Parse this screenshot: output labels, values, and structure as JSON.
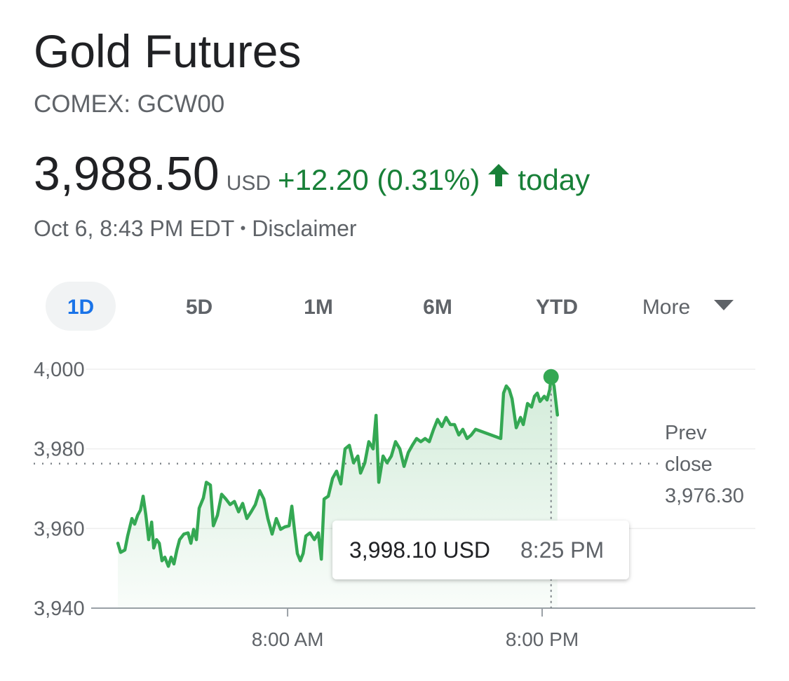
{
  "header": {
    "title": "Gold Futures",
    "symbol": "COMEX: GCW00",
    "price": "3,988.50",
    "currency": "USD",
    "change": "+12.20 (0.31%)",
    "period": "today",
    "timestamp": "Oct 6, 8:43 PM EDT",
    "separator": "•",
    "disclaimer": "Disclaimer"
  },
  "tabs": {
    "items": [
      "1D",
      "5D",
      "1M",
      "6M",
      "YTD",
      "More"
    ],
    "selected": "1D"
  },
  "chart_data": {
    "type": "line",
    "x": [
      0.0,
      0.13,
      0.33,
      0.46,
      0.66,
      0.79,
      0.93,
      1.06,
      1.19,
      1.32,
      1.45,
      1.59,
      1.69,
      1.82,
      1.95,
      2.08,
      2.21,
      2.38,
      2.51,
      2.64,
      2.78,
      2.91,
      3.11,
      3.31,
      3.44,
      3.57,
      3.7,
      3.83,
      4.03,
      4.17,
      4.36,
      4.5,
      4.69,
      4.89,
      5.09,
      5.29,
      5.49,
      5.69,
      5.88,
      6.08,
      6.28,
      6.48,
      6.68,
      6.88,
      7.07,
      7.27,
      7.47,
      7.67,
      7.87,
      8.07,
      8.2,
      8.33,
      8.46,
      8.6,
      8.73,
      8.86,
      9.06,
      9.26,
      9.45,
      9.59,
      9.72,
      9.92,
      10.12,
      10.31,
      10.51,
      10.71,
      10.91,
      11.11,
      11.31,
      11.44,
      11.64,
      11.83,
      12.03,
      12.17,
      12.3,
      12.5,
      12.69,
      12.89,
      13.09,
      13.29,
      13.49,
      13.69,
      13.88,
      14.08,
      14.28,
      14.48,
      14.68,
      14.88,
      15.07,
      15.27,
      15.47,
      15.67,
      15.87,
      16.07,
      16.26,
      16.46,
      16.66,
      16.86,
      18.05,
      18.18,
      18.31,
      18.45,
      18.58,
      18.78,
      18.98,
      19.11,
      19.31,
      19.5,
      19.64,
      19.77,
      19.9,
      20.1,
      20.23,
      20.36,
      20.42,
      20.56,
      20.72
    ],
    "series": [
      {
        "color": "#34a853",
        "values": [
          3956.3,
          3954.0,
          3954.6,
          3958.1,
          3962.5,
          3961.1,
          3963.3,
          3964.6,
          3968.1,
          3963.3,
          3957.2,
          3961.6,
          3955.1,
          3957.2,
          3956.3,
          3951.9,
          3952.8,
          3950.5,
          3952.8,
          3951.1,
          3954.6,
          3957.2,
          3958.6,
          3958.9,
          3956.3,
          3959.8,
          3957.2,
          3965.1,
          3967.7,
          3971.6,
          3970.9,
          3960.7,
          3963.3,
          3968.6,
          3967.4,
          3966.0,
          3966.8,
          3964.2,
          3966.3,
          3962.5,
          3964.2,
          3966.0,
          3969.5,
          3967.4,
          3962.5,
          3958.6,
          3962.5,
          3959.8,
          3960.4,
          3960.7,
          3965.6,
          3959.3,
          3953.7,
          3951.9,
          3953.7,
          3958.1,
          3958.9,
          3957.2,
          3958.9,
          3952.3,
          3967.4,
          3968.1,
          3972.6,
          3974.4,
          3971.2,
          3980.0,
          3980.9,
          3976.5,
          3978.2,
          3973.9,
          3976.5,
          3981.8,
          3980.0,
          3988.4,
          3971.6,
          3978.2,
          3976.5,
          3978.2,
          3981.8,
          3980.0,
          3975.6,
          3979.1,
          3980.9,
          3982.6,
          3981.8,
          3982.6,
          3981.8,
          3984.9,
          3987.4,
          3985.6,
          3987.9,
          3986.1,
          3986.1,
          3983.5,
          3984.9,
          3982.6,
          3983.5,
          3984.9,
          3982.6,
          3994.0,
          3995.8,
          3994.9,
          3992.6,
          3985.3,
          3987.9,
          3986.1,
          3991.4,
          3990.5,
          3993.2,
          3994.0,
          3991.9,
          3993.2,
          3992.3,
          3994.9,
          3998.1,
          3995.8,
          3988.5
        ]
      }
    ],
    "xlim": [
      -1.26,
      30.05
    ],
    "xticks": [
      {
        "value": 8,
        "label": "8:00 AM"
      },
      {
        "value": 20,
        "label": "8:00 PM"
      }
    ],
    "ylim": [
      3940,
      4000
    ],
    "yticks": [
      {
        "value": 3940,
        "label": "3,940"
      },
      {
        "value": 3960,
        "label": "3,960"
      },
      {
        "value": 3980,
        "label": "3,980"
      },
      {
        "value": 4000,
        "label": "4,000"
      }
    ],
    "grid": true,
    "prev_close": {
      "label_lines": [
        "Prev",
        "close"
      ],
      "value": 3976.3,
      "value_label": "3,976.30"
    },
    "tooltip": {
      "x": 20.42,
      "value": 3998.1,
      "label": "3,998.10 USD",
      "time": "8:25 PM"
    }
  }
}
